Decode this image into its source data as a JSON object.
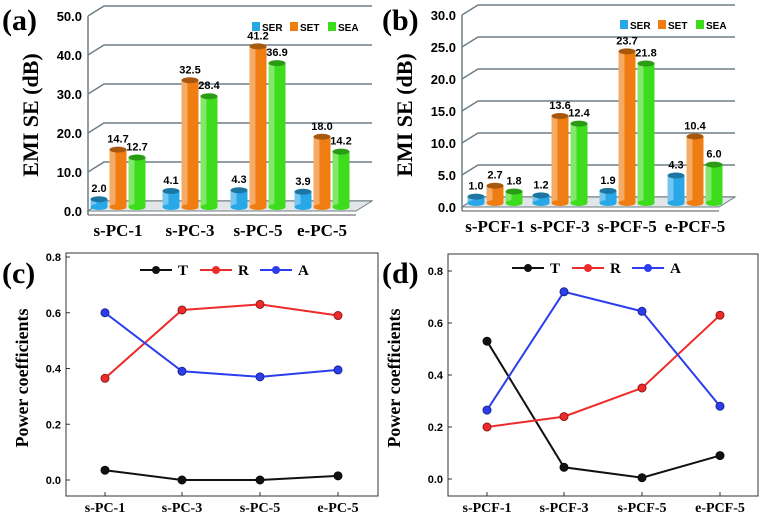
{
  "chart_data": [
    {
      "panel": "(a)",
      "type": "bar",
      "ylabel": "EMI SE (dB)",
      "ylim": [
        0,
        50
      ],
      "yticks": [
        "0.0",
        "10.0",
        "20.0",
        "30.0",
        "40.0",
        "50.0"
      ],
      "categories": [
        "s-PC-1",
        "s-PC-3",
        "s-PC-5",
        "e-PC-5"
      ],
      "series": [
        {
          "name": "SER",
          "color": "#29a8e8",
          "values": [
            2.0,
            4.1,
            4.3,
            3.9
          ],
          "labels": [
            "2.0",
            "4.1",
            "4.3",
            "3.9"
          ]
        },
        {
          "name": "SET",
          "color": "#f07d12",
          "values": [
            14.7,
            32.5,
            41.2,
            18.0
          ],
          "labels": [
            "14.7",
            "32.5",
            "41.2",
            "18.0"
          ]
        },
        {
          "name": "SEA",
          "color": "#3ddc1c",
          "values": [
            12.7,
            28.4,
            36.9,
            14.2
          ],
          "labels": [
            "12.7",
            "28.4",
            "36.9",
            "14.2"
          ]
        }
      ],
      "legend": "top-right"
    },
    {
      "panel": "(b)",
      "type": "bar",
      "ylabel": "EMI SE (dB)",
      "ylim": [
        0,
        30
      ],
      "yticks": [
        "0.0",
        "5.0",
        "10.0",
        "15.0",
        "20.0",
        "25.0",
        "30.0"
      ],
      "categories": [
        "s-PCF-1",
        "s-PCF-3",
        "s-PCF-5",
        "e-PCF-5"
      ],
      "series": [
        {
          "name": "SER",
          "color": "#29a8e8",
          "values": [
            1.0,
            1.2,
            1.9,
            4.3
          ],
          "labels": [
            "1.0",
            "1.2",
            "1.9",
            "4.3"
          ]
        },
        {
          "name": "SET",
          "color": "#f07d12",
          "values": [
            2.7,
            13.6,
            23.7,
            10.4
          ],
          "labels": [
            "2.7",
            "13.6",
            "23.7",
            "10.4"
          ]
        },
        {
          "name": "SEA",
          "color": "#3ddc1c",
          "values": [
            1.8,
            12.4,
            21.8,
            6.0
          ],
          "labels": [
            "1.8",
            "12.4",
            "21.8",
            "6.0"
          ]
        }
      ],
      "legend": "top-right"
    },
    {
      "panel": "(c)",
      "type": "line",
      "ylabel": "Power coefficients",
      "ylim": [
        -0.06,
        0.8
      ],
      "yticks": [
        "0.0",
        "0.2",
        "0.4",
        "0.6",
        "0.8"
      ],
      "categories": [
        "s-PC-1",
        "s-PC-3",
        "s-PC-5",
        "e-PC-5"
      ],
      "series": [
        {
          "name": "T",
          "color": "#111111",
          "values": [
            0.035,
            0.0,
            0.0,
            0.015
          ]
        },
        {
          "name": "R",
          "color": "#ee2b2b",
          "values": [
            0.365,
            0.61,
            0.63,
            0.59
          ]
        },
        {
          "name": "A",
          "color": "#2b3ded",
          "values": [
            0.6,
            0.39,
            0.37,
            0.395
          ]
        }
      ],
      "legend": "top"
    },
    {
      "panel": "(d)",
      "type": "line",
      "ylabel": "Power coefficients",
      "ylim": [
        -0.06,
        0.86
      ],
      "yticks": [
        "0.0",
        "0.2",
        "0.4",
        "0.6",
        "0.8"
      ],
      "categories": [
        "s-PCF-1",
        "s-PCF-3",
        "s-PCF-5",
        "e-PCF-5"
      ],
      "series": [
        {
          "name": "T",
          "color": "#111111",
          "values": [
            0.53,
            0.045,
            0.005,
            0.09
          ]
        },
        {
          "name": "R",
          "color": "#ee2b2b",
          "values": [
            0.2,
            0.24,
            0.35,
            0.63
          ]
        },
        {
          "name": "A",
          "color": "#2b3ded",
          "values": [
            0.265,
            0.72,
            0.645,
            0.28
          ]
        }
      ],
      "legend": "top"
    }
  ]
}
